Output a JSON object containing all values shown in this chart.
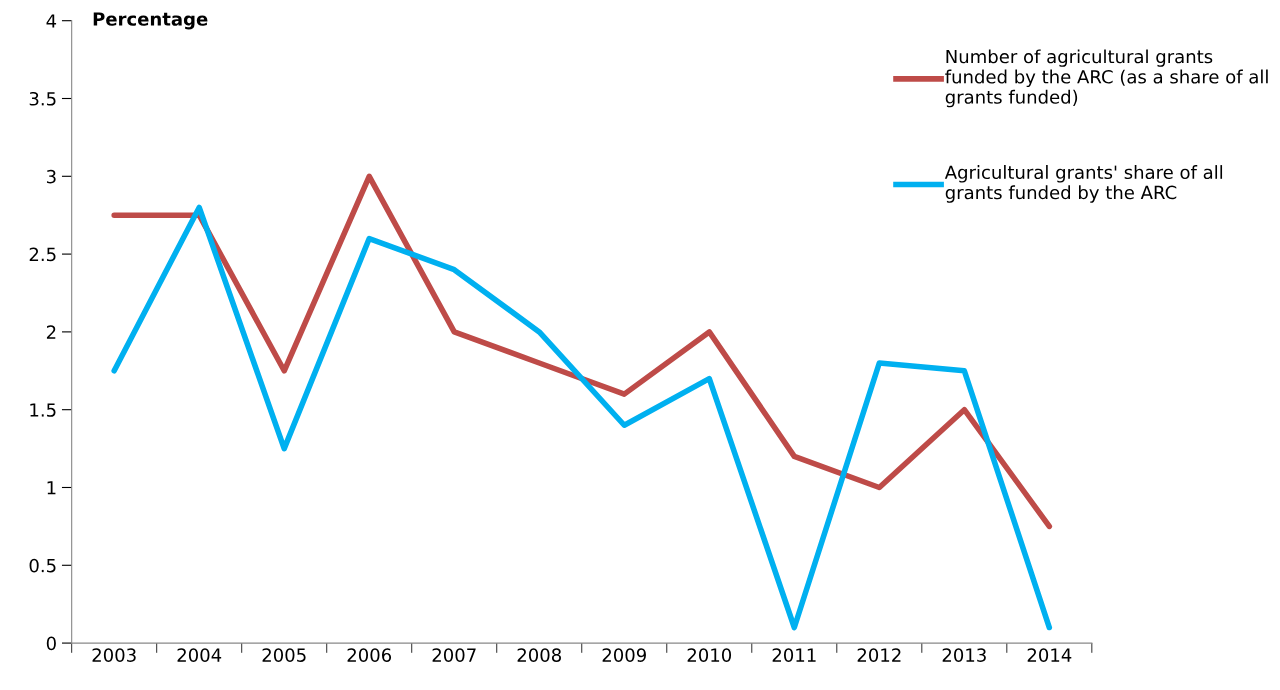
{
  "chart_data": {
    "type": "line",
    "ylabel": "Percentage",
    "categories": [
      "2003",
      "2004",
      "2005",
      "2006",
      "2007",
      "2008",
      "2009",
      "2010",
      "2011",
      "2012",
      "2013",
      "2014"
    ],
    "series": [
      {
        "name": "Number of agricultural grants\nfunded by the ARC (as a share of all\ngrants funded)",
        "color": "#be4b48",
        "values": [
          2.75,
          2.75,
          1.75,
          3.0,
          2.0,
          1.8,
          1.6,
          2.0,
          1.2,
          1.0,
          1.5,
          0.75
        ]
      },
      {
        "name": "Agricultural grants' share of all\ngrants funded by the ARC",
        "color": "#00b0f0",
        "values": [
          1.75,
          2.8,
          1.25,
          2.6,
          2.4,
          2.0,
          1.4,
          1.7,
          0.1,
          1.8,
          1.75,
          0.1
        ]
      }
    ],
    "ylim": [
      0,
      4
    ],
    "yticks": [
      0,
      0.5,
      1,
      1.5,
      2,
      2.5,
      3,
      3.5,
      4
    ],
    "grid": false,
    "legend": "top right",
    "marker": "none",
    "line_style": "solid"
  }
}
